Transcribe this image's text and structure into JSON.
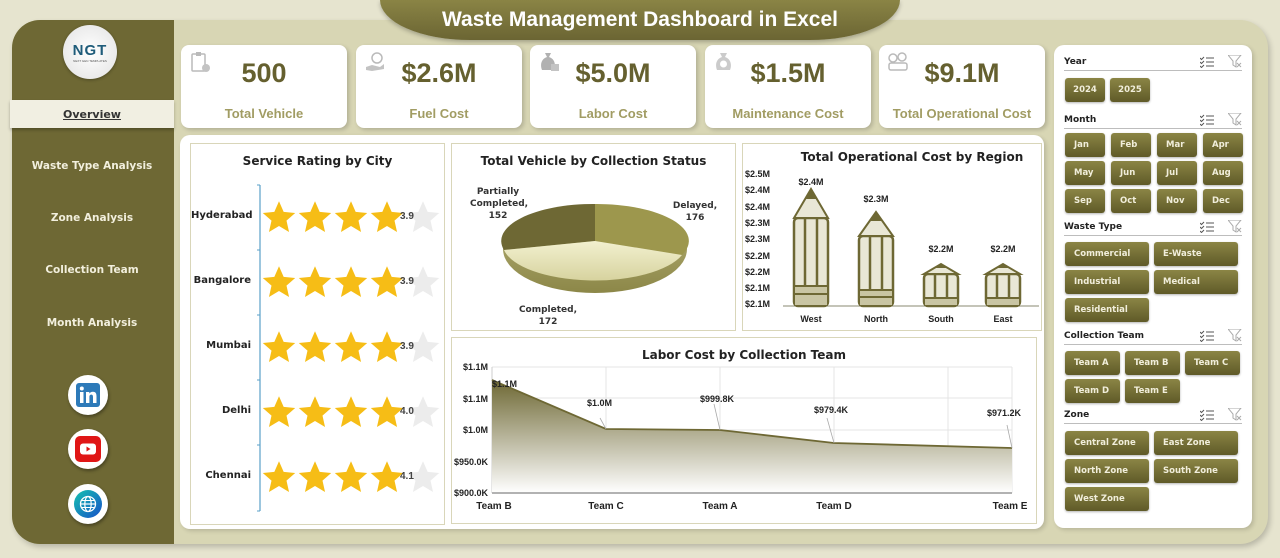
{
  "header": {
    "title": "Waste Management Dashboard in Excel"
  },
  "logo": {
    "text": "NGT",
    "subtext": "NEXT GEN TEMPLATES"
  },
  "sidebar": {
    "items": [
      {
        "label": "Overview",
        "active": true
      },
      {
        "label": "Waste Type Analysis"
      },
      {
        "label": "Zone Analysis"
      },
      {
        "label": "Collection Team"
      },
      {
        "label": "Month Analysis"
      }
    ],
    "social": [
      "linkedin-icon",
      "youtube-icon",
      "globe-icon"
    ]
  },
  "kpis": [
    {
      "value": "500",
      "label": "Total Vehicle",
      "icon": "clipboard-vehicle-icon"
    },
    {
      "value": "$2.6M",
      "label": "Fuel Cost",
      "icon": "hand-money-icon"
    },
    {
      "value": "$5.0M",
      "label": "Labor Cost",
      "icon": "money-bag-icon"
    },
    {
      "value": "$1.5M",
      "label": "Maintenance Cost",
      "icon": "dollar-bag-icon"
    },
    {
      "value": "$9.1M",
      "label": "Total Operational Cost",
      "icon": "cash-stack-icon"
    }
  ],
  "colors": {
    "primary": "#6e6834",
    "accent": "#a19c63",
    "star": "#f6bd16",
    "star_empty": "#ececec",
    "background": "#d8d6b4"
  },
  "chart_data": [
    {
      "type": "table",
      "title": "Service Rating by City",
      "categories": [
        "Hyderabad",
        "Bangalore",
        "Mumbai",
        "Delhi",
        "Chennai"
      ],
      "values": [
        3.9,
        3.9,
        3.9,
        4.0,
        4.1
      ],
      "value_labels": [
        "3.9",
        "3.9",
        "3.9",
        "4.0",
        "4.1"
      ],
      "max": 5
    },
    {
      "type": "pie",
      "title": "Total Vehicle by Collection Status",
      "categories": [
        "Partially Completed",
        "Delayed",
        "Completed"
      ],
      "values": [
        152,
        176,
        172
      ],
      "labels": [
        {
          "line1": "Partially",
          "line2": "Completed,",
          "line3": "152"
        },
        {
          "line1": "Delayed,",
          "line2": "176"
        },
        {
          "line1": "Completed,",
          "line2": "172"
        }
      ]
    },
    {
      "type": "bar",
      "title": "Total Operational Cost by Region",
      "categories": [
        "West",
        "North",
        "South",
        "East"
      ],
      "values": [
        2.4,
        2.3,
        2.2,
        2.2
      ],
      "value_labels": [
        "$2.4M",
        "$2.3M",
        "$2.2M",
        "$2.2M"
      ],
      "yticks": [
        "$2.5M",
        "$2.4M",
        "$2.4M",
        "$2.3M",
        "$2.3M",
        "$2.2M",
        "$2.2M",
        "$2.1M",
        "$2.1M"
      ],
      "ylim": [
        2.1,
        2.5
      ],
      "ylabel": "",
      "xlabel": ""
    },
    {
      "type": "area",
      "title": "Labor Cost by Collection Team",
      "categories": [
        "Team B",
        "Team C",
        "Team A",
        "Team D",
        "Team E"
      ],
      "values": [
        1080000,
        1001000,
        999800,
        979400,
        971200
      ],
      "value_labels": [
        "$1.1M",
        "$1.0M",
        "$999.8K",
        "$979.4K",
        "$971.2K"
      ],
      "yticks": [
        "$1.1M",
        "$1.1M",
        "$1.0M",
        "$950.0K",
        "$900.0K"
      ],
      "ylim": [
        900000,
        1100000
      ],
      "grid": true
    }
  ],
  "slicers": {
    "year": {
      "title": "Year",
      "options": [
        "2024",
        "2025"
      ]
    },
    "month": {
      "title": "Month",
      "options": [
        "Jan",
        "Feb",
        "Mar",
        "Apr",
        "May",
        "Jun",
        "Jul",
        "Aug",
        "Sep",
        "Oct",
        "Nov",
        "Dec"
      ]
    },
    "waste_type": {
      "title": "Waste Type",
      "options": [
        "Commercial",
        "E-Waste",
        "Industrial",
        "Medical",
        "Residential"
      ]
    },
    "team": {
      "title": "Collection Team",
      "options": [
        "Team A",
        "Team B",
        "Team C",
        "Team D",
        "Team E"
      ]
    },
    "zone": {
      "title": "Zone",
      "options": [
        "Central Zone",
        "East Zone",
        "North Zone",
        "South Zone",
        "West Zone"
      ]
    }
  }
}
